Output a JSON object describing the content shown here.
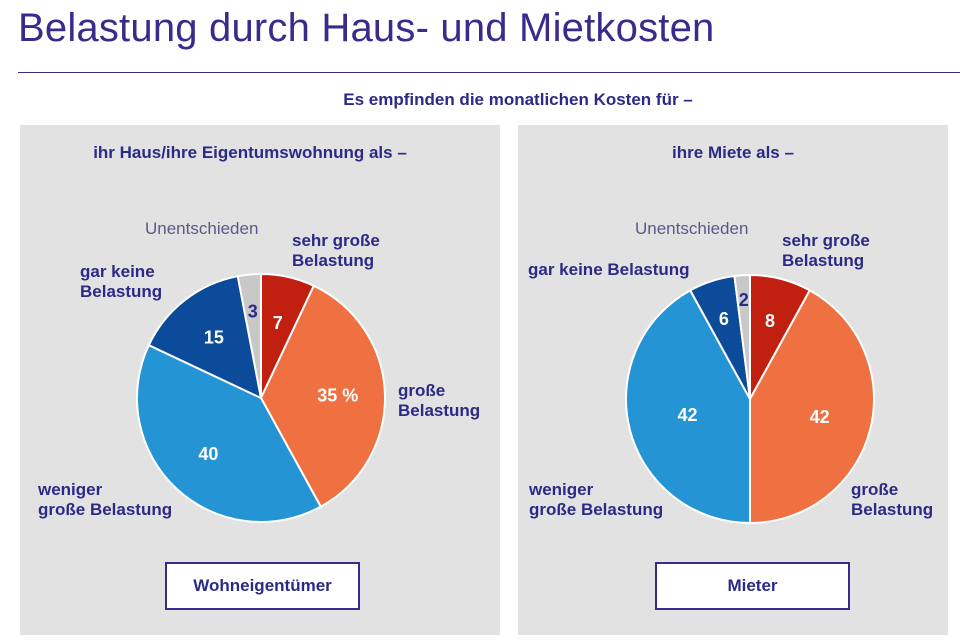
{
  "title": "Belastung durch Haus- und Mietkosten",
  "subtitle": "Es empfinden die monatlichen Kosten für –",
  "chart_data": [
    {
      "type": "pie",
      "heading": "ihr Haus/ihre Eigentumswohnung als –",
      "group": "Wohneigentümer",
      "slices": [
        {
          "key": "sehr_gross",
          "label_lines": [
            "sehr große",
            "Belastung"
          ],
          "value": 7,
          "value_label": "7",
          "color": "#c11f0f"
        },
        {
          "key": "gross",
          "label_lines": [
            "große",
            "Belastung"
          ],
          "value": 35,
          "value_label": "35 %",
          "color": "#ef7040"
        },
        {
          "key": "weniger",
          "label_lines": [
            "weniger",
            "große Belastung"
          ],
          "value": 40,
          "value_label": "40",
          "color": "#2494d4"
        },
        {
          "key": "keine",
          "label_lines": [
            "gar keine",
            "Belastung"
          ],
          "value": 15,
          "value_label": "15",
          "color": "#0b4b9a"
        },
        {
          "key": "unentschieden",
          "label_lines": [
            "Unentschieden"
          ],
          "value": 3,
          "value_label": "3",
          "color": "#c8c8c8"
        }
      ]
    },
    {
      "type": "pie",
      "heading": "ihre Miete als –",
      "group": "Mieter",
      "slices": [
        {
          "key": "sehr_gross",
          "label_lines": [
            "sehr große",
            "Belastung"
          ],
          "value": 8,
          "value_label": "8",
          "color": "#c11f0f"
        },
        {
          "key": "gross",
          "label_lines": [
            "große",
            "Belastung"
          ],
          "value": 42,
          "value_label": "42",
          "color": "#ef7040"
        },
        {
          "key": "weniger",
          "label_lines": [
            "weniger",
            "große Belastung"
          ],
          "value": 42,
          "value_label": "42",
          "color": "#2494d4"
        },
        {
          "key": "keine",
          "label_lines": [
            "gar keine Belastung"
          ],
          "value": 6,
          "value_label": "6",
          "color": "#0b4b9a"
        },
        {
          "key": "unentschieden",
          "label_lines": [
            "Unentschieden"
          ],
          "value": 2,
          "value_label": "2",
          "color": "#c8c8c8"
        }
      ]
    }
  ]
}
